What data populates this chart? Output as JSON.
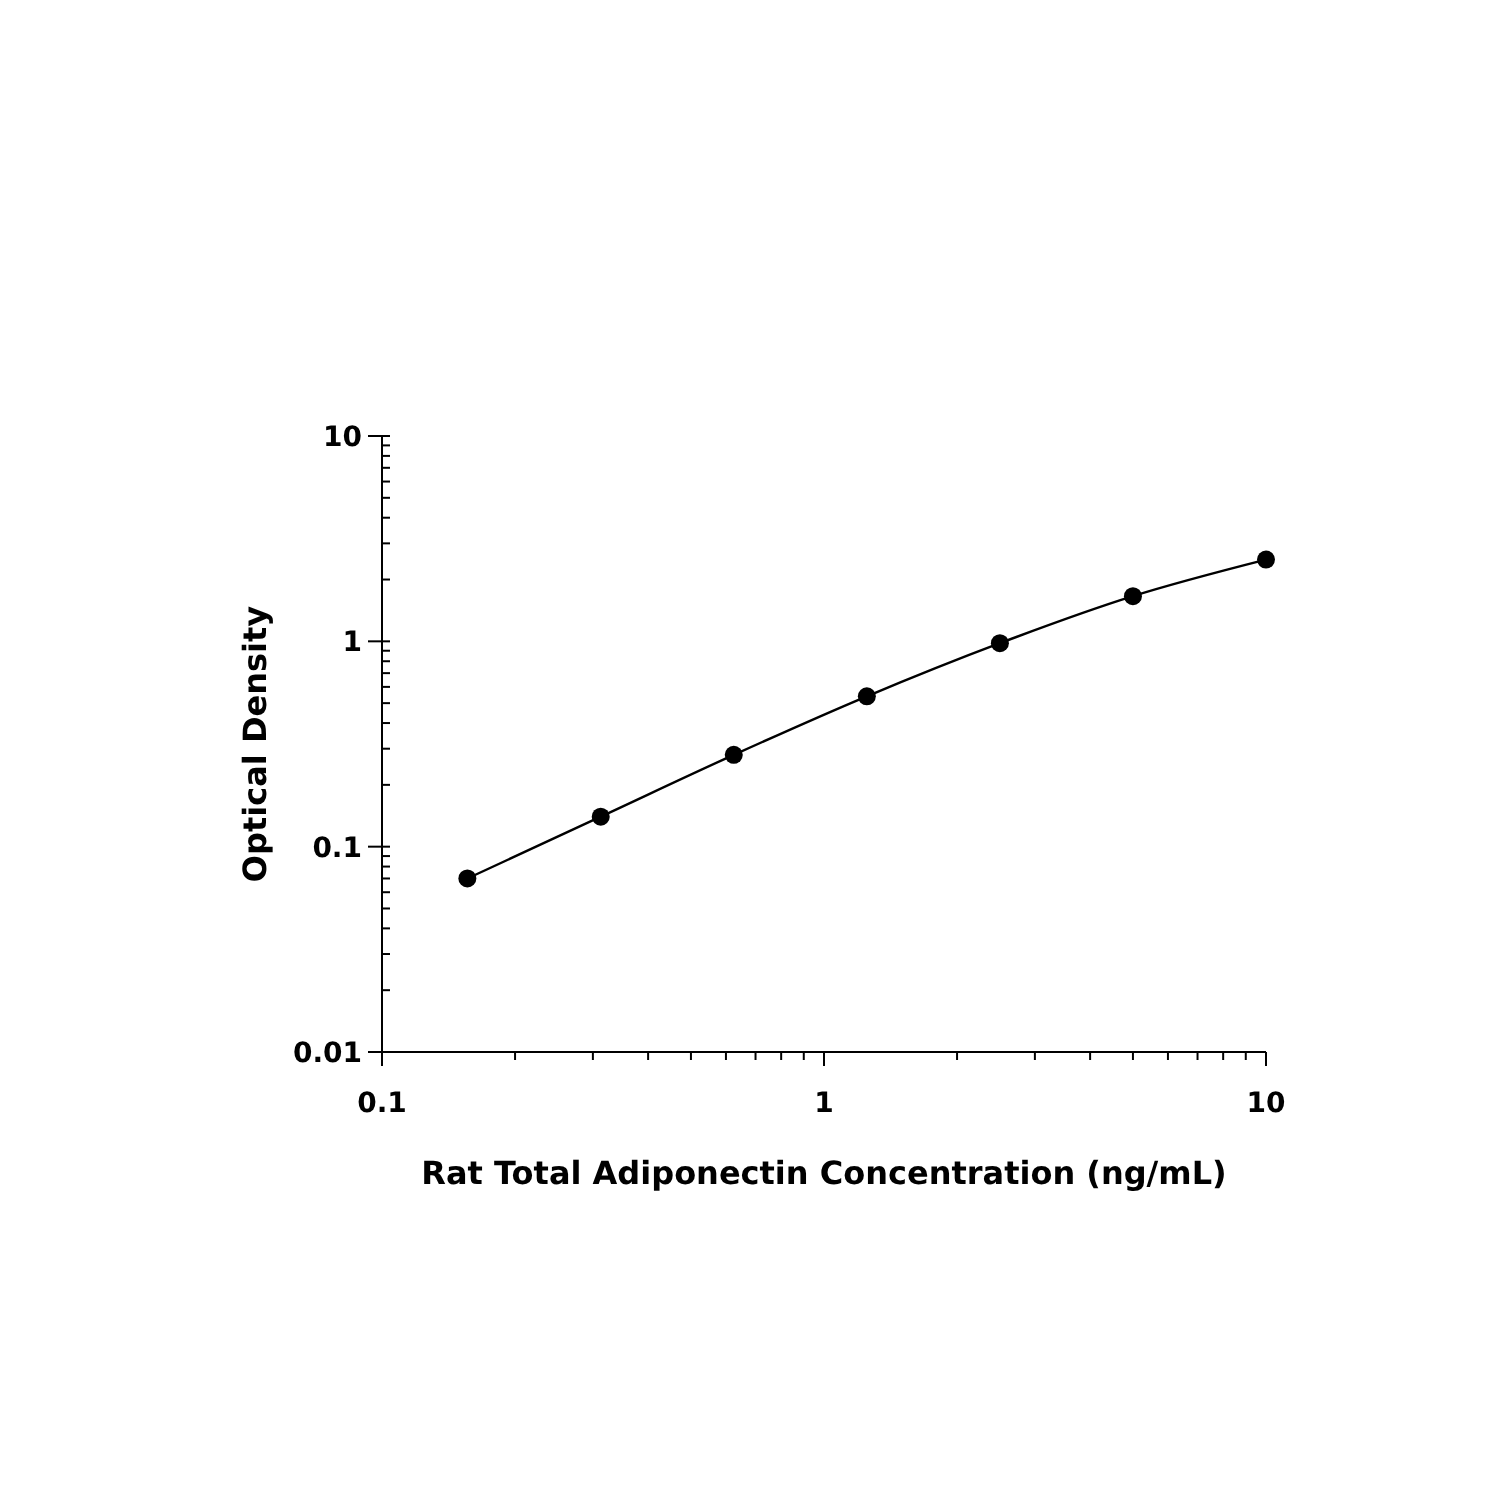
{
  "chart_data": {
    "type": "line",
    "xlabel": "Rat Total Adiponectin Concentration (ng/mL)",
    "ylabel": "Optical Density",
    "log": "xy",
    "grid": false,
    "marker": "circle",
    "line_style": "solid",
    "x": [
      0.156,
      0.3125,
      0.625,
      1.25,
      2.5,
      5,
      10
    ],
    "series": [
      {
        "color": "#000000",
        "values": [
          0.07,
          0.14,
          0.28,
          0.54,
          0.98,
          1.66,
          2.5
        ]
      }
    ],
    "xlim": [
      0.1,
      10
    ],
    "ylim": [
      0.01,
      10
    ],
    "xticks": [
      0.1,
      {
        "value": 0.2,
        "label": null
      },
      {
        "value": 0.3,
        "label": null
      },
      {
        "value": 0.4,
        "label": null
      },
      {
        "value": 0.5,
        "label": null
      },
      {
        "value": 0.6,
        "label": null
      },
      {
        "value": 0.7,
        "label": null
      },
      {
        "value": 0.8,
        "label": null
      },
      {
        "value": 0.9,
        "label": null
      },
      1,
      {
        "value": 2,
        "label": null
      },
      {
        "value": 3,
        "label": null
      },
      {
        "value": 4,
        "label": null
      },
      {
        "value": 5,
        "label": null
      },
      {
        "value": 6,
        "label": null
      },
      {
        "value": 7,
        "label": null
      },
      {
        "value": 8,
        "label": null
      },
      {
        "value": 9,
        "label": null
      },
      10
    ],
    "yticks": [
      0.01,
      {
        "value": 0.02,
        "label": null
      },
      {
        "value": 0.03,
        "label": null
      },
      {
        "value": 0.04,
        "label": null
      },
      {
        "value": 0.05,
        "label": null
      },
      {
        "value": 0.06,
        "label": null
      },
      {
        "value": 0.07,
        "label": null
      },
      {
        "value": 0.08,
        "label": null
      },
      {
        "value": 0.09,
        "label": null
      },
      0.1,
      {
        "value": 0.2,
        "label": null
      },
      {
        "value": 0.3,
        "label": null
      },
      {
        "value": 0.4,
        "label": null
      },
      {
        "value": 0.5,
        "label": null
      },
      {
        "value": 0.6,
        "label": null
      },
      {
        "value": 0.7,
        "label": null
      },
      {
        "value": 0.8,
        "label": null
      },
      {
        "value": 0.9,
        "label": null
      },
      1,
      {
        "value": 2,
        "label": null
      },
      {
        "value": 3,
        "label": null
      },
      {
        "value": 4,
        "label": null
      },
      {
        "value": 5,
        "label": null
      },
      {
        "value": 6,
        "label": null
      },
      {
        "value": 7,
        "label": null
      },
      {
        "value": 8,
        "label": null
      },
      {
        "value": 9,
        "label": null
      },
      10
    ]
  }
}
